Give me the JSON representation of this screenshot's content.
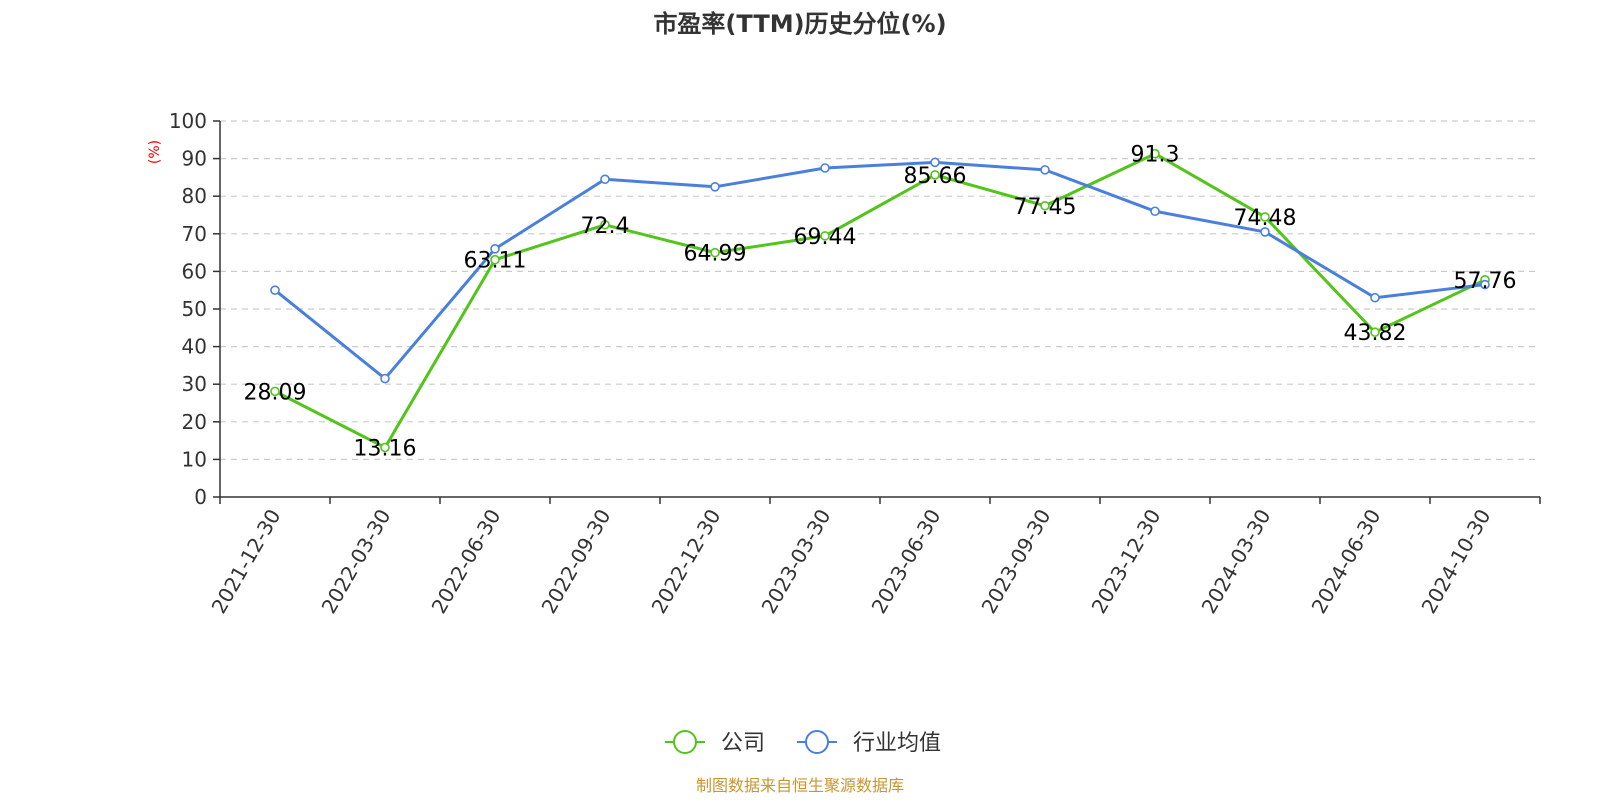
{
  "chart_data": {
    "type": "line",
    "title": "市盈率(TTM)历史分位(%)",
    "ylabel": "(%)",
    "xlabel": "",
    "ylim": [
      0,
      100
    ],
    "yticks": [
      0,
      10,
      20,
      30,
      40,
      50,
      60,
      70,
      80,
      90,
      100
    ],
    "grid": true,
    "legend_position": "bottom",
    "categories": [
      "2021-12-30",
      "2022-03-30",
      "2022-06-30",
      "2022-09-30",
      "2022-12-30",
      "2023-03-30",
      "2023-06-30",
      "2023-09-30",
      "2023-12-30",
      "2024-03-30",
      "2024-06-30",
      "2024-10-30"
    ],
    "series": [
      {
        "name": "公司",
        "color": "#52c41a",
        "values": [
          28.09,
          13.16,
          63.11,
          72.4,
          64.99,
          69.44,
          85.66,
          77.45,
          91.3,
          74.48,
          43.82,
          57.76
        ],
        "labels": [
          "28.09",
          "13.16",
          "63.11",
          "72.4",
          "64.99",
          "69.44",
          "85.66",
          "77.45",
          "91.3",
          "74.48",
          "43.82",
          "57.76"
        ]
      },
      {
        "name": "行业均值",
        "color": "#4a80dc",
        "values": [
          55,
          31.5,
          66,
          84.5,
          82.5,
          87.5,
          89,
          87,
          76,
          70.5,
          53,
          56.5
        ]
      }
    ],
    "ylabel_color": "#ff0000",
    "source": "制图数据来自恒生聚源数据库",
    "source_color": "#c8962e"
  }
}
